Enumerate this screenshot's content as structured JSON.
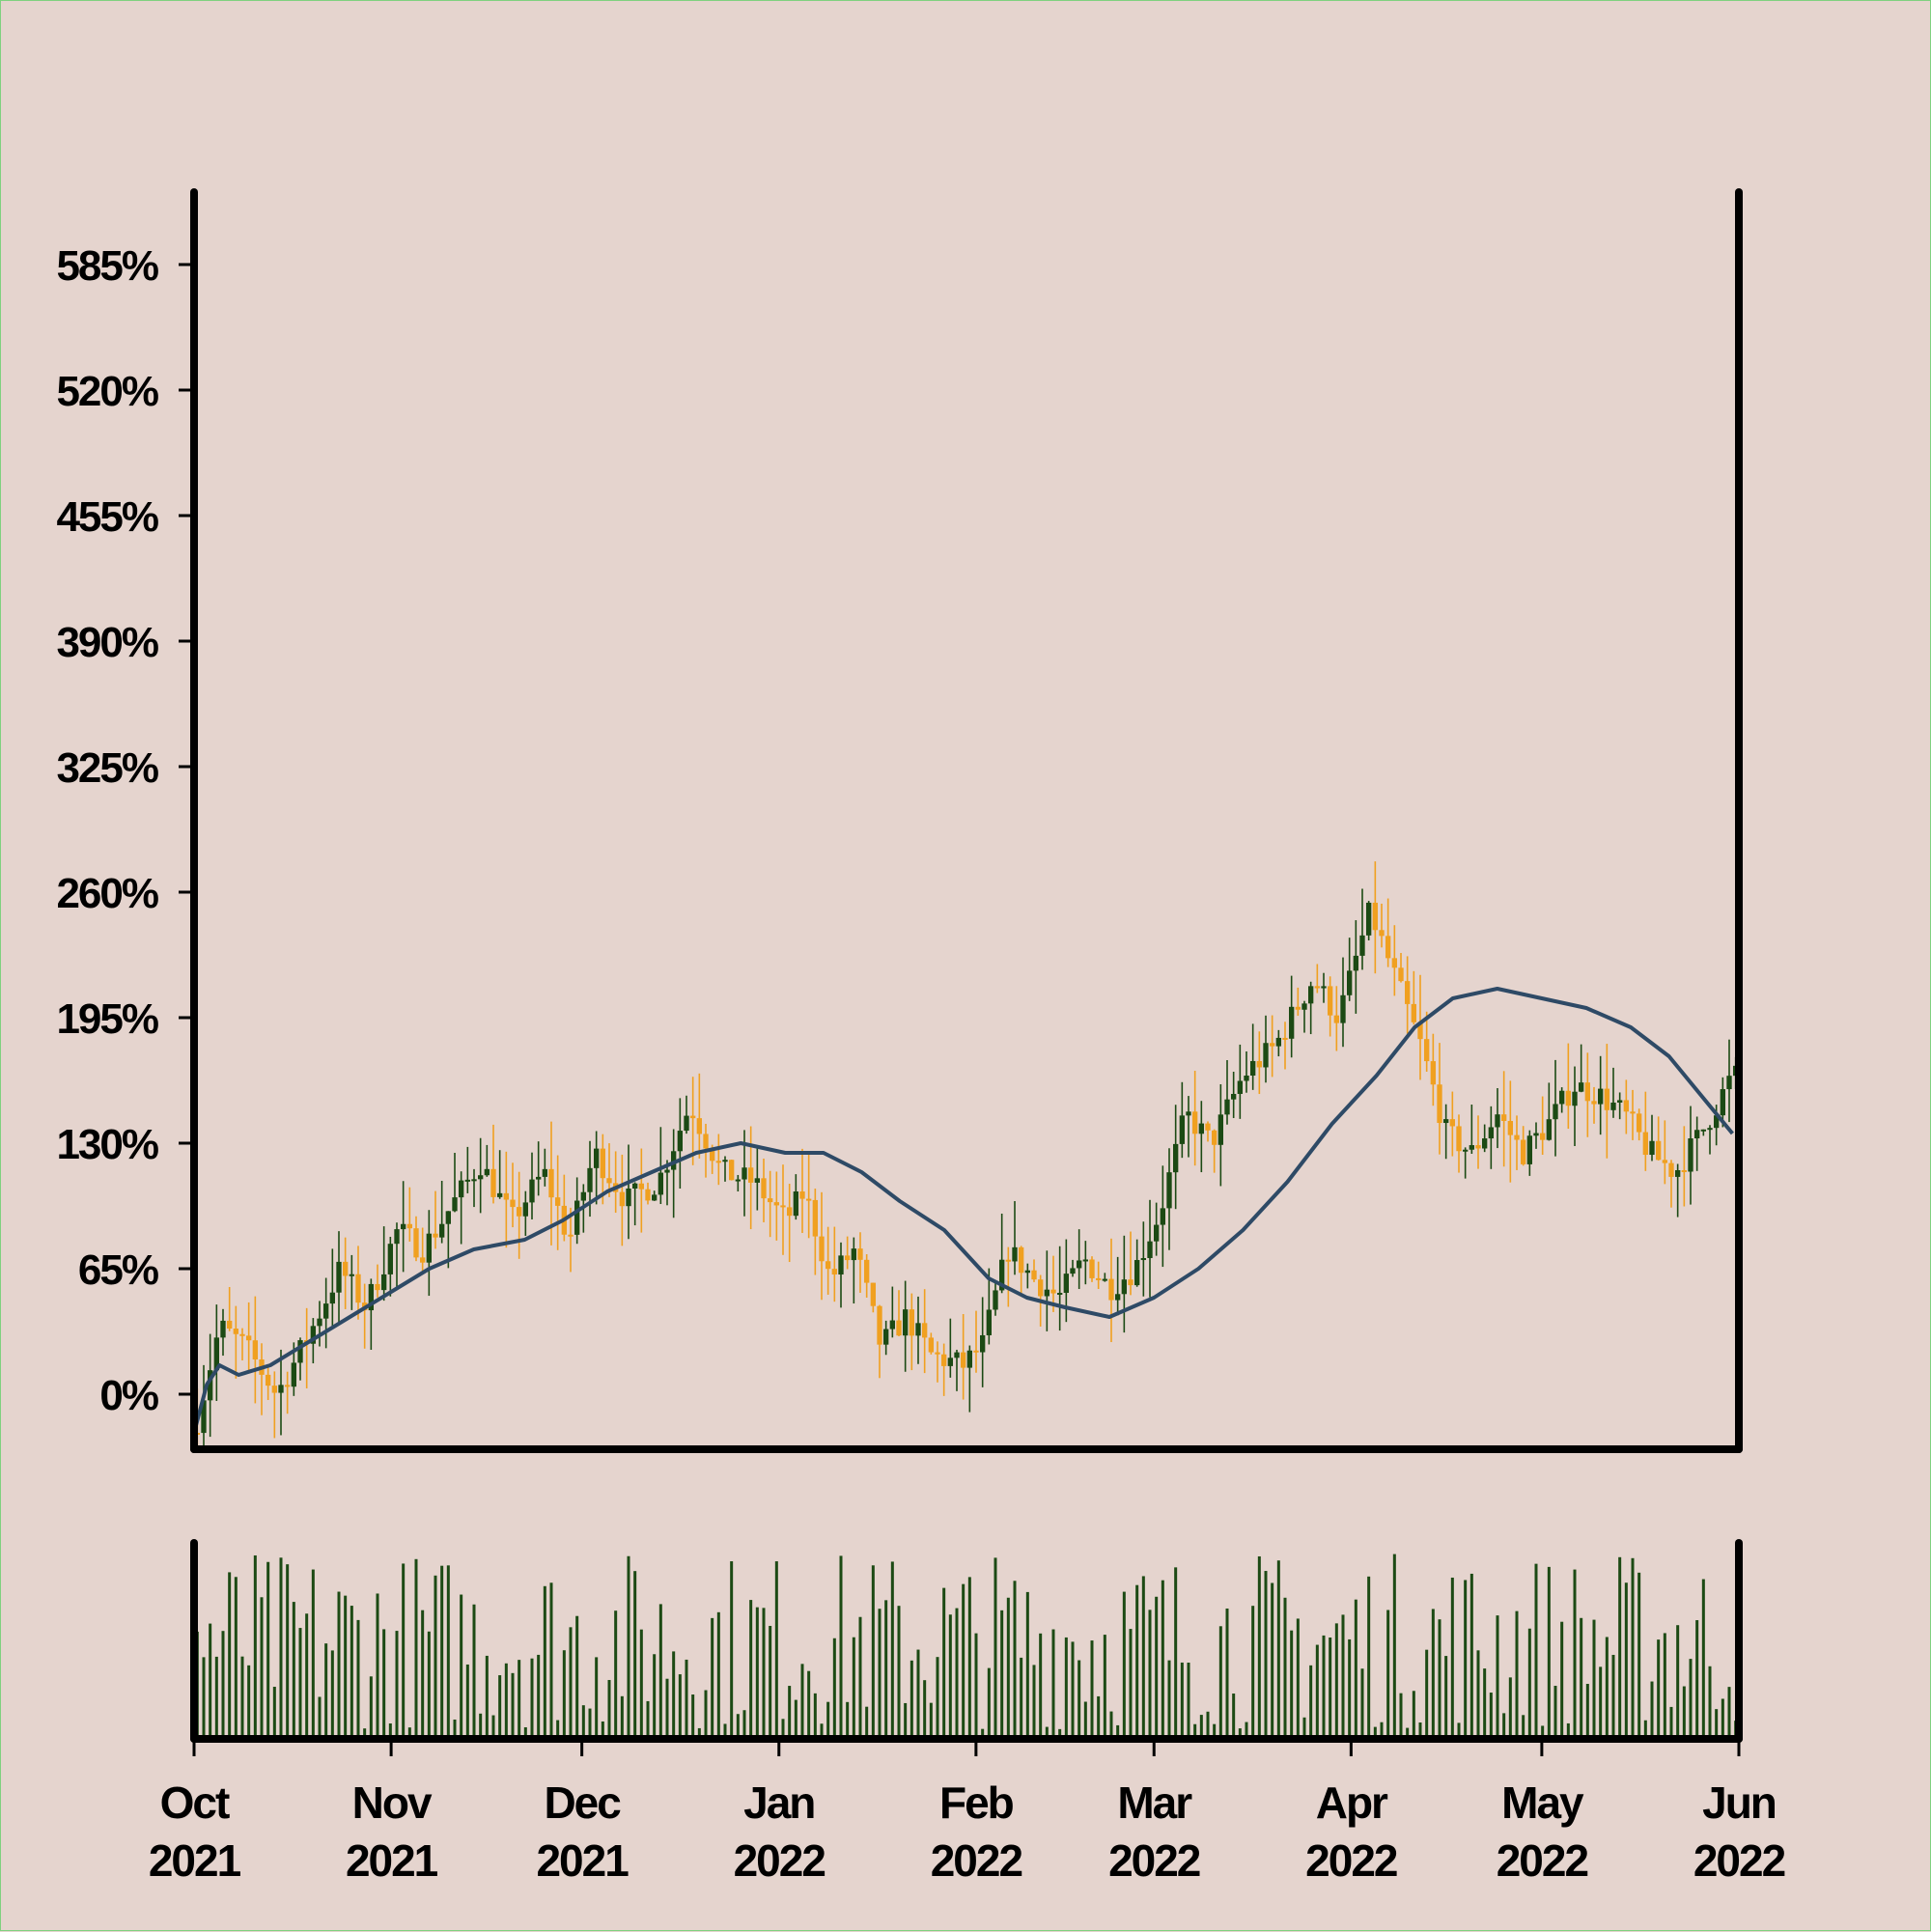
{
  "chart_data": {
    "type": "candlestick",
    "title": "",
    "xlabel": "",
    "ylabel": "",
    "y_tick_labels": [
      "0%",
      "65%",
      "130%",
      "195%",
      "260%",
      "325%",
      "390%",
      "455%",
      "520%",
      "585%"
    ],
    "y_ticks": [
      0,
      65,
      130,
      195,
      260,
      325,
      390,
      455,
      520,
      585
    ],
    "ylim": [
      -30,
      620
    ],
    "x_range": [
      "2021-10-01",
      "2022-06-01"
    ],
    "x_tick_labels": [
      {
        "month": "Oct",
        "year": "2021",
        "date": "2021-10-01"
      },
      {
        "month": "Nov",
        "year": "2021",
        "date": "2021-11-01"
      },
      {
        "month": "Dec",
        "year": "2021",
        "date": "2021-12-01"
      },
      {
        "month": "Jan",
        "year": "2022",
        "date": "2022-01-01"
      },
      {
        "month": "Feb",
        "year": "2022",
        "date": "2022-02-01"
      },
      {
        "month": "Mar",
        "year": "2022",
        "date": "2022-03-01"
      },
      {
        "month": "Apr",
        "year": "2022",
        "date": "2022-04-01"
      },
      {
        "month": "May",
        "year": "2022",
        "date": "2022-05-01"
      },
      {
        "month": "Jun",
        "year": "2022",
        "date": "2022-06-01"
      }
    ],
    "series": [
      {
        "kind": "close",
        "points": [
          [
            "2021-10-01",
            -20
          ],
          [
            "2021-10-05",
            35
          ],
          [
            "2021-10-09",
            25
          ],
          [
            "2021-10-14",
            0
          ],
          [
            "2021-10-19",
            30
          ],
          [
            "2021-10-24",
            65
          ],
          [
            "2021-10-28",
            45
          ],
          [
            "2021-11-02",
            85
          ],
          [
            "2021-11-06",
            75
          ],
          [
            "2021-11-10",
            95
          ],
          [
            "2021-11-15",
            120
          ],
          [
            "2021-11-20",
            90
          ],
          [
            "2021-11-25",
            115
          ],
          [
            "2021-11-29",
            80
          ],
          [
            "2021-12-03",
            125
          ],
          [
            "2021-12-08",
            100
          ],
          [
            "2021-12-13",
            110
          ],
          [
            "2021-12-18",
            150
          ],
          [
            "2021-12-23",
            115
          ],
          [
            "2021-12-28",
            110
          ],
          [
            "2022-01-02",
            90
          ],
          [
            "2022-01-05",
            105
          ],
          [
            "2022-01-09",
            60
          ],
          [
            "2022-01-13",
            75
          ],
          [
            "2022-01-17",
            25
          ],
          [
            "2022-01-21",
            40
          ],
          [
            "2022-01-25",
            20
          ],
          [
            "2022-01-30",
            15
          ],
          [
            "2022-02-02",
            25
          ],
          [
            "2022-02-06",
            75
          ],
          [
            "2022-02-10",
            60
          ],
          [
            "2022-02-14",
            50
          ],
          [
            "2022-02-18",
            70
          ],
          [
            "2022-02-22",
            55
          ],
          [
            "2022-02-26",
            65
          ],
          [
            "2022-03-02",
            95
          ],
          [
            "2022-03-06",
            145
          ],
          [
            "2022-03-10",
            130
          ],
          [
            "2022-03-15",
            165
          ],
          [
            "2022-03-20",
            180
          ],
          [
            "2022-03-26",
            215
          ],
          [
            "2022-03-30",
            195
          ],
          [
            "2022-04-04",
            250
          ],
          [
            "2022-04-08",
            215
          ],
          [
            "2022-04-12",
            180
          ],
          [
            "2022-04-16",
            135
          ],
          [
            "2022-04-20",
            125
          ],
          [
            "2022-04-24",
            145
          ],
          [
            "2022-04-28",
            125
          ],
          [
            "2022-05-02",
            140
          ],
          [
            "2022-05-06",
            160
          ],
          [
            "2022-05-10",
            155
          ],
          [
            "2022-05-14",
            145
          ],
          [
            "2022-05-18",
            125
          ],
          [
            "2022-05-22",
            115
          ],
          [
            "2022-05-26",
            135
          ],
          [
            "2022-05-31",
            165
          ]
        ]
      },
      {
        "kind": "moving-average",
        "points": [
          [
            "2021-10-01",
            -20
          ],
          [
            "2021-10-03",
            5
          ],
          [
            "2021-10-05",
            15
          ],
          [
            "2021-10-08",
            10
          ],
          [
            "2021-10-13",
            15
          ],
          [
            "2021-10-18",
            25
          ],
          [
            "2021-10-23",
            35
          ],
          [
            "2021-10-28",
            45
          ],
          [
            "2021-11-02",
            55
          ],
          [
            "2021-11-07",
            65
          ],
          [
            "2021-11-14",
            75
          ],
          [
            "2021-11-22",
            80
          ],
          [
            "2021-11-28",
            90
          ],
          [
            "2021-12-05",
            105
          ],
          [
            "2021-12-12",
            115
          ],
          [
            "2021-12-19",
            125
          ],
          [
            "2021-12-26",
            130
          ],
          [
            "2022-01-02",
            125
          ],
          [
            "2022-01-08",
            125
          ],
          [
            "2022-01-14",
            115
          ],
          [
            "2022-01-20",
            100
          ],
          [
            "2022-01-27",
            85
          ],
          [
            "2022-02-03",
            60
          ],
          [
            "2022-02-09",
            50
          ],
          [
            "2022-02-15",
            45
          ],
          [
            "2022-02-22",
            40
          ],
          [
            "2022-03-01",
            50
          ],
          [
            "2022-03-08",
            65
          ],
          [
            "2022-03-15",
            85
          ],
          [
            "2022-03-22",
            110
          ],
          [
            "2022-03-29",
            140
          ],
          [
            "2022-04-05",
            165
          ],
          [
            "2022-04-11",
            190
          ],
          [
            "2022-04-17",
            205
          ],
          [
            "2022-04-24",
            210
          ],
          [
            "2022-05-01",
            205
          ],
          [
            "2022-05-08",
            200
          ],
          [
            "2022-05-15",
            190
          ],
          [
            "2022-05-21",
            175
          ],
          [
            "2022-05-26",
            155
          ],
          [
            "2022-05-31",
            135
          ]
        ]
      }
    ],
    "volume": {
      "kind": "volume-bars",
      "relative_range": [
        0,
        1
      ],
      "bar_count": 240
    },
    "colors": {
      "background": "#e5d4ce",
      "up": "#1c4a14",
      "down": "#f0a020",
      "moving_average": "#2e4a66",
      "volume": "#1c4a14",
      "axes": "#000000",
      "frame": "#7fd17f"
    },
    "grid": false,
    "legend": "none"
  }
}
